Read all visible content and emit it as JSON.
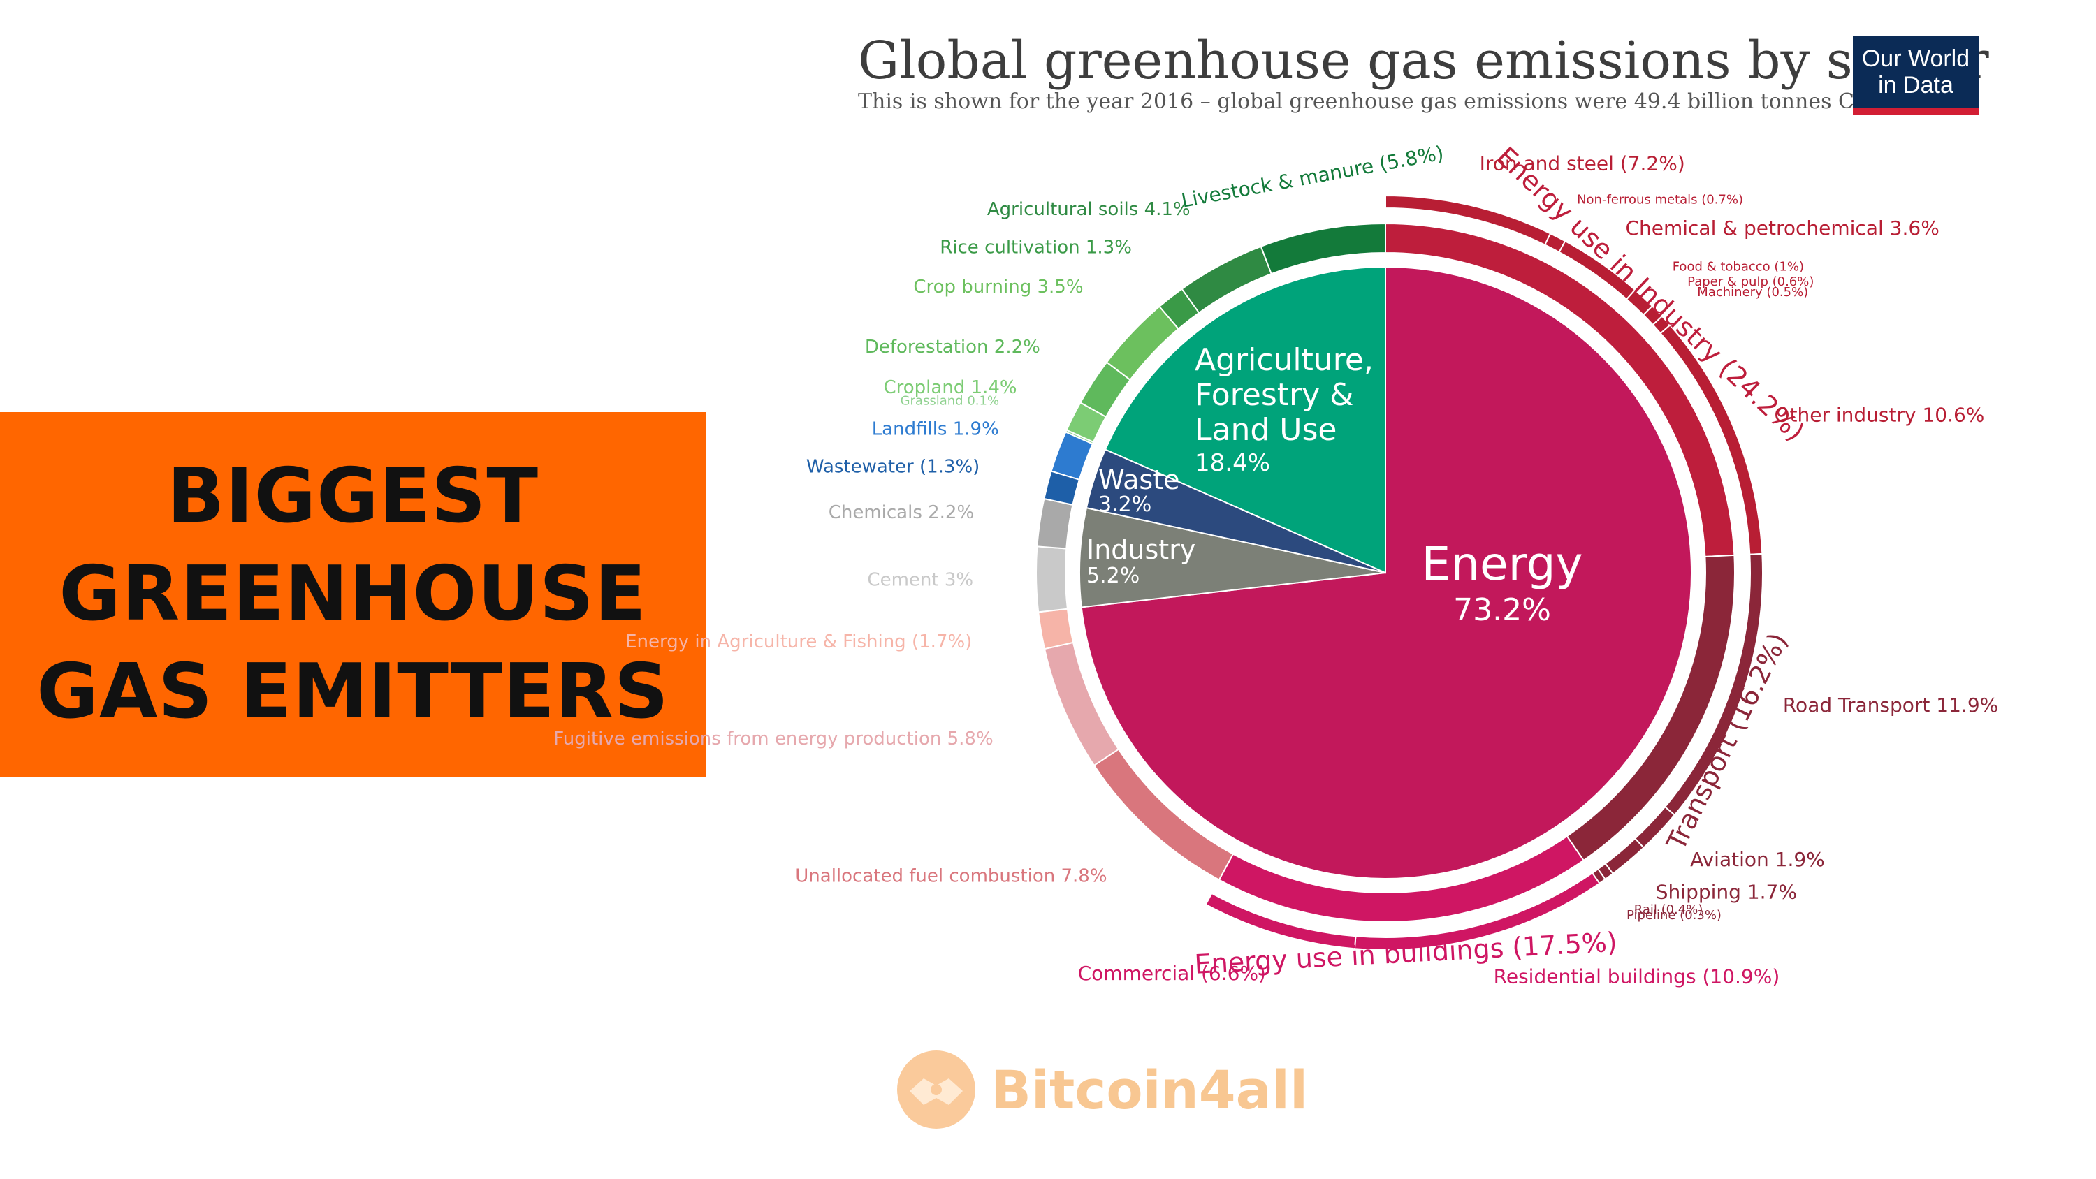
{
  "banner": {
    "lines": [
      "BIGGEST",
      "GREENHOUSE",
      "GAS EMITTERS"
    ],
    "color": "#ff6600"
  },
  "header": {
    "title": "Global greenhouse gas emissions by sector",
    "subtitle": "This is shown for the year 2016 – global greenhouse gas emissions were 49.4 billion tonnes CO₂eq."
  },
  "logo": {
    "line1": "Our World",
    "line2": "in Data"
  },
  "watermark": {
    "text": "Bitcoin4all",
    "icon": "handshake-icon"
  },
  "chart_data": {
    "type": "pie",
    "title": "Global greenhouse gas emissions by sector",
    "start_angle_deg": 0,
    "sectors": [
      {
        "name": "Energy",
        "value": 73.2,
        "color": "#c2185b",
        "label_color": "#ffffff"
      },
      {
        "name": "Industry",
        "value": 5.2,
        "color": "#7c8077",
        "label_color": "#ffffff"
      },
      {
        "name": "Waste",
        "value": 3.2,
        "color": "#2c4a7e",
        "label_color": "#ffffff"
      },
      {
        "name": "Agriculture, Forestry & Land Use",
        "value": 18.4,
        "color": "#00a37a",
        "label_color": "#ffffff"
      }
    ],
    "inner_ring": [
      {
        "label": "Energy use in Industry (24.2%)",
        "value": 24.2,
        "color": "#be1e3c"
      },
      {
        "label": "Transport (16.2%)",
        "value": 16.2,
        "color": "#8b2639"
      },
      {
        "label": "Energy use in buildings (17.5%)",
        "value": 17.5,
        "color": "#cf1663"
      },
      {
        "label": "Unallocated fuel combustion 7.8%",
        "value": 7.8,
        "color": "#d9767d"
      },
      {
        "label": "Fugitive emissions from energy production 5.8%",
        "value": 5.8,
        "color": "#e6a8ad"
      },
      {
        "label": "Energy in Agriculture & Fishing (1.7%)",
        "value": 1.7,
        "color": "#f6b4a8"
      },
      {
        "label": "Cement 3%",
        "value": 3.0,
        "color": "#c9c9c9"
      },
      {
        "label": "Chemicals 2.2%",
        "value": 2.2,
        "color": "#a9a9a9"
      },
      {
        "label": "Wastewater (1.3%)",
        "value": 1.3,
        "color": "#1e5fa8"
      },
      {
        "label": "Landfills 1.9%",
        "value": 1.9,
        "color": "#2d7bd0"
      },
      {
        "label": "Grassland 0.1%",
        "value": 0.1,
        "color": "#8fd18f"
      },
      {
        "label": "Cropland 1.4%",
        "value": 1.4,
        "color": "#7ccc74"
      },
      {
        "label": "Deforestation 2.2%",
        "value": 2.2,
        "color": "#5fb95c"
      },
      {
        "label": "Crop burning 3.5%",
        "value": 3.5,
        "color": "#6cc05e"
      },
      {
        "label": "Rice cultivation 1.3%",
        "value": 1.3,
        "color": "#3a9a47"
      },
      {
        "label": "Agricultural soils 4.1%",
        "value": 4.1,
        "color": "#2f8a43"
      },
      {
        "label": "Livestock & manure (5.8%)",
        "value": 5.8,
        "color": "#137a3a"
      }
    ],
    "outer_arcs": [
      {
        "label": "Iron and steel (7.2%)",
        "value": 7.2,
        "color": "#b81e34"
      },
      {
        "label": "Non-ferrous metals (0.7%)",
        "value": 0.7,
        "color": "#b81e34"
      },
      {
        "label": "Chemical & petrochemical 3.6%",
        "value": 3.6,
        "color": "#b81e34"
      },
      {
        "label": "Food & tobacco (1%)",
        "value": 1.0,
        "color": "#b81e34"
      },
      {
        "label": "Paper & pulp (0.6%)",
        "value": 0.6,
        "color": "#b81e34"
      },
      {
        "label": "Machinery (0.5%)",
        "value": 0.5,
        "color": "#b81e34"
      },
      {
        "label": "Other industry 10.6%",
        "value": 10.6,
        "color": "#b81e34"
      },
      {
        "label": "Road Transport 11.9%",
        "value": 11.9,
        "color": "#8b2639"
      },
      {
        "label": "Aviation 1.9%",
        "value": 1.9,
        "color": "#8b2639"
      },
      {
        "label": "Shipping 1.7%",
        "value": 1.7,
        "color": "#8b2639"
      },
      {
        "label": "Rail (0.4%)",
        "value": 0.4,
        "color": "#8b2639"
      },
      {
        "label": "Pipeline (0.3%)",
        "value": 0.3,
        "color": "#8b2639"
      },
      {
        "label": "Residential buildings (10.9%)",
        "value": 10.9,
        "color": "#cf1663"
      },
      {
        "label": "Commercial (6.6%)",
        "value": 6.6,
        "color": "#cf1663"
      }
    ]
  }
}
